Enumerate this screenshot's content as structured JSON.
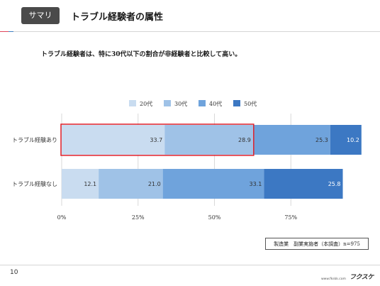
{
  "header": {
    "tag": "サマリ",
    "title": "トラブル経験者の属性"
  },
  "subtitle": "トラブル経験者は、特に30代以下の割合が非経験者と比較して高い。",
  "chart_data": {
    "type": "bar",
    "orientation": "horizontal",
    "stacked": true,
    "percent_stacked": true,
    "categories": [
      "トラブル経験あり",
      "トラブル経験なし"
    ],
    "series": [
      {
        "name": "20代",
        "values": [
          33.7,
          12.1
        ],
        "color": "#c9dcf0"
      },
      {
        "name": "30代",
        "values": [
          28.9,
          21.0
        ],
        "color": "#9fc2e7"
      },
      {
        "name": "40代",
        "values": [
          25.3,
          33.1
        ],
        "color": "#6fa3dc"
      },
      {
        "name": "50代",
        "values": [
          10.2,
          25.8
        ],
        "color": "#3c78c3"
      }
    ],
    "xlim": [
      0,
      100
    ],
    "xticks": [
      "0%",
      "25%",
      "50%",
      "75%"
    ],
    "grid": true,
    "legend_position": "top",
    "highlight": {
      "category": "トラブル経験あり",
      "series": [
        "20代",
        "30代"
      ],
      "color": "#e0202a"
    }
  },
  "note": "製造業　副業実施者（本調査）n=975",
  "footer": {
    "page": "10",
    "url": "www.fkskk.com",
    "logo": "フクスケ"
  }
}
